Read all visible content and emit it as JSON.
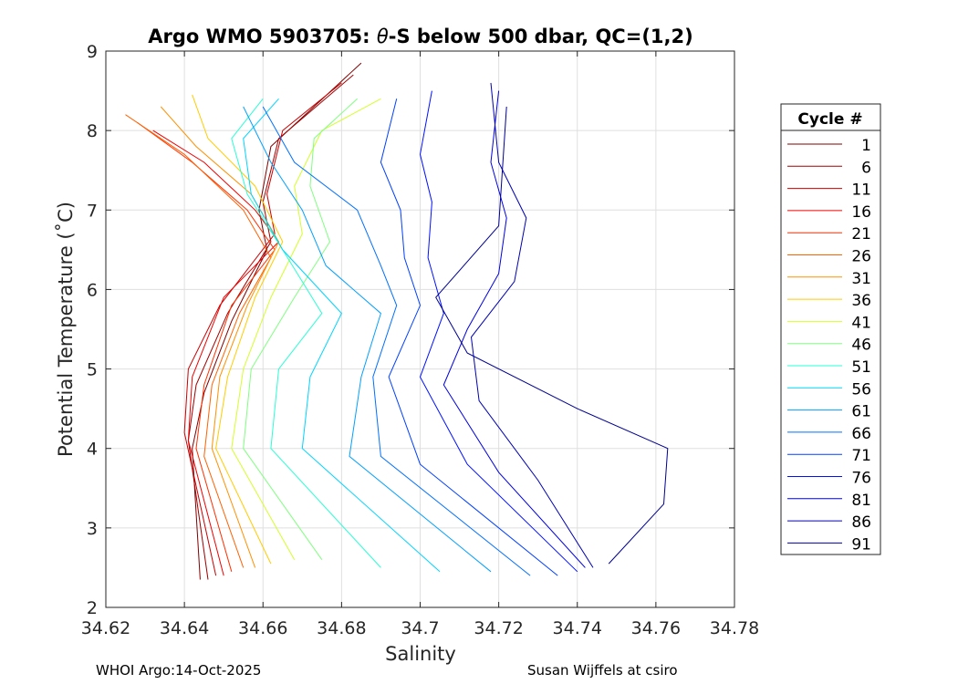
{
  "chart_data": {
    "type": "line",
    "title_prefix": "Argo WMO 5903705: ",
    "title_theta": "θ",
    "title_suffix": "-S below 500 dbar,  QC=(1,2)",
    "xlabel": "Salinity",
    "ylabel": "Potential Temperature (˚C)",
    "xlim": [
      34.62,
      34.78
    ],
    "ylim": [
      2,
      9
    ],
    "xticks": [
      34.62,
      34.64,
      34.66,
      34.68,
      34.7,
      34.72,
      34.74,
      34.76,
      34.78
    ],
    "xtick_labels": [
      "34.62",
      "34.64",
      "34.66",
      "34.68",
      "34.7",
      "34.72",
      "34.74",
      "34.76",
      "34.78"
    ],
    "yticks": [
      2,
      3,
      4,
      5,
      6,
      7,
      8,
      9
    ],
    "ytick_labels": [
      "2",
      "3",
      "4",
      "5",
      "6",
      "7",
      "8",
      "9"
    ],
    "grid": true,
    "legend_title": "Cycle #",
    "legend_position": "right",
    "colormap": "jet",
    "series": [
      {
        "name": "1",
        "color": "#800000",
        "x": [
          34.644,
          34.642,
          34.645,
          34.652,
          34.661,
          34.659,
          34.662,
          34.685
        ],
        "y": [
          2.35,
          4.0,
          4.7,
          5.6,
          6.5,
          7.0,
          7.8,
          8.85
        ]
      },
      {
        "name": "6",
        "color": "#a00000",
        "x": [
          34.646,
          34.641,
          34.643,
          34.651,
          34.662,
          34.66,
          34.664,
          34.683
        ],
        "y": [
          2.35,
          4.1,
          4.8,
          5.7,
          6.6,
          7.1,
          7.9,
          8.7
        ]
      },
      {
        "name": "11",
        "color": "#c80000",
        "x": [
          34.648,
          34.64,
          34.641,
          34.649,
          34.663,
          34.661,
          34.665,
          34.68
        ],
        "y": [
          2.4,
          4.2,
          5.0,
          5.8,
          6.7,
          7.2,
          8.0,
          8.6
        ]
      },
      {
        "name": "16",
        "color": "#f00000",
        "x": [
          34.65,
          34.641,
          34.642,
          34.65,
          34.664,
          34.658,
          34.645,
          34.632
        ],
        "y": [
          2.4,
          4.1,
          4.9,
          5.9,
          6.6,
          7.0,
          7.6,
          8.0
        ]
      },
      {
        "name": "21",
        "color": "#ff3000",
        "x": [
          34.652,
          34.643,
          34.645,
          34.652,
          34.663,
          34.656,
          34.642,
          34.628
        ],
        "y": [
          2.45,
          4.0,
          4.8,
          5.8,
          6.5,
          7.0,
          7.6,
          8.1
        ]
      },
      {
        "name": "26",
        "color": "#ff6000",
        "x": [
          34.655,
          34.645,
          34.647,
          34.654,
          34.662,
          34.655,
          34.64,
          34.625
        ],
        "y": [
          2.5,
          3.9,
          4.8,
          5.7,
          6.4,
          7.0,
          7.7,
          8.2
        ]
      },
      {
        "name": "31",
        "color": "#ff9000",
        "x": [
          34.658,
          34.647,
          34.649,
          34.656,
          34.664,
          34.657,
          34.643,
          34.634
        ],
        "y": [
          2.5,
          4.0,
          4.9,
          5.8,
          6.6,
          7.2,
          7.8,
          8.3
        ]
      },
      {
        "name": "36",
        "color": "#ffcc00",
        "x": [
          34.662,
          34.648,
          34.651,
          34.658,
          34.665,
          34.658,
          34.646,
          34.642
        ],
        "y": [
          2.55,
          4.0,
          4.9,
          5.9,
          6.6,
          7.3,
          7.9,
          8.45
        ]
      },
      {
        "name": "41",
        "color": "#d4ff2a",
        "x": [
          34.668,
          34.652,
          34.655,
          34.662,
          34.67,
          34.668,
          34.675,
          34.69
        ],
        "y": [
          2.6,
          4.0,
          5.0,
          5.9,
          6.7,
          7.3,
          8.0,
          8.4
        ]
      },
      {
        "name": "46",
        "color": "#80ff80",
        "x": [
          34.675,
          34.655,
          34.657,
          34.668,
          34.677,
          34.672,
          34.673,
          34.684
        ],
        "y": [
          2.6,
          4.0,
          5.0,
          5.9,
          6.6,
          7.3,
          7.9,
          8.4
        ]
      },
      {
        "name": "51",
        "color": "#2affd4",
        "x": [
          34.69,
          34.662,
          34.664,
          34.675,
          34.665,
          34.656,
          34.652,
          34.66
        ],
        "y": [
          2.5,
          4.0,
          5.0,
          5.7,
          6.5,
          7.2,
          7.9,
          8.4
        ]
      },
      {
        "name": "56",
        "color": "#00d4ff",
        "x": [
          34.705,
          34.67,
          34.672,
          34.68,
          34.665,
          34.657,
          34.655,
          34.664
        ],
        "y": [
          2.45,
          4.0,
          4.9,
          5.7,
          6.5,
          7.2,
          7.9,
          8.4
        ]
      },
      {
        "name": "61",
        "color": "#00a0ff",
        "x": [
          34.718,
          34.682,
          34.685,
          34.69,
          34.676,
          34.67,
          34.662,
          34.655
        ],
        "y": [
          2.45,
          3.9,
          4.9,
          5.7,
          6.3,
          7.0,
          7.6,
          8.3
        ]
      },
      {
        "name": "66",
        "color": "#0070ff",
        "x": [
          34.728,
          34.69,
          34.688,
          34.694,
          34.69,
          34.684,
          34.668,
          34.66
        ],
        "y": [
          2.4,
          3.9,
          4.9,
          5.8,
          6.3,
          7.0,
          7.6,
          8.3
        ]
      },
      {
        "name": "71",
        "color": "#0040ff",
        "x": [
          34.735,
          34.7,
          34.692,
          34.7,
          34.696,
          34.695,
          34.69,
          34.694
        ],
        "y": [
          2.4,
          3.8,
          4.9,
          5.8,
          6.4,
          7.0,
          7.6,
          8.4
        ]
      },
      {
        "name": "76",
        "color": "#0010ff",
        "x": [
          34.74,
          34.712,
          34.7,
          34.706,
          34.702,
          34.703,
          34.7,
          34.703
        ],
        "y": [
          2.45,
          3.8,
          4.9,
          5.7,
          6.4,
          7.1,
          7.7,
          8.5
        ]
      },
      {
        "name": "81",
        "color": "#0000e0",
        "x": [
          34.742,
          34.72,
          34.706,
          34.712,
          34.72,
          34.722,
          34.718,
          34.72
        ],
        "y": [
          2.5,
          3.7,
          4.8,
          5.5,
          6.2,
          6.9,
          7.6,
          8.5
        ]
      },
      {
        "name": "86",
        "color": "#0000b0",
        "x": [
          34.744,
          34.73,
          34.715,
          34.713,
          34.724,
          34.727,
          34.72,
          34.718
        ],
        "y": [
          2.5,
          3.6,
          4.6,
          5.4,
          6.1,
          6.9,
          7.6,
          8.6
        ]
      },
      {
        "name": "91",
        "color": "#000090",
        "x": [
          34.748,
          34.762,
          34.763,
          34.74,
          34.712,
          34.704,
          34.72,
          34.722
        ],
        "y": [
          2.55,
          3.3,
          4.0,
          4.5,
          5.2,
          5.9,
          6.8,
          8.3
        ]
      }
    ]
  },
  "footer": {
    "left": "WHOI Argo:14-Oct-2025",
    "right": "Susan Wijffels at csiro"
  }
}
